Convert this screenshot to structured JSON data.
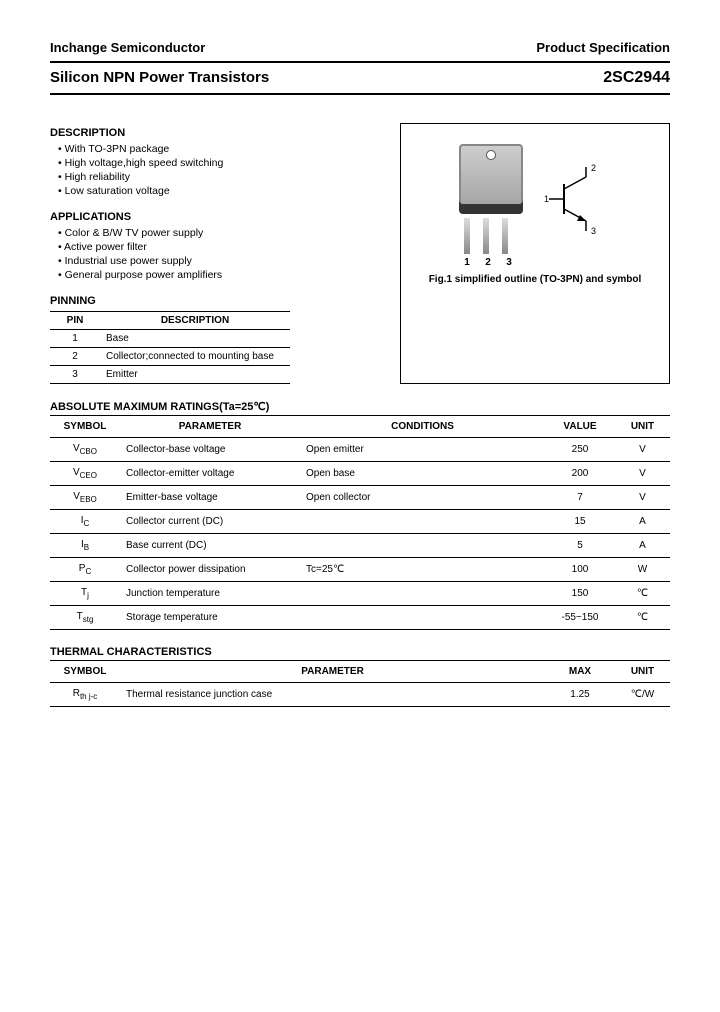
{
  "header": {
    "left": "Inchange Semiconductor",
    "right": "Product Specification"
  },
  "title": {
    "left": "Silicon NPN Power Transistors",
    "right": "2SC2944"
  },
  "description": {
    "heading": "DESCRIPTION",
    "items": [
      "With TO-3PN package",
      "High voltage,high speed switching",
      "High reliability",
      "Low saturation voltage"
    ]
  },
  "applications": {
    "heading": "APPLICATIONS",
    "items": [
      "Color & B/W TV power supply",
      "Active power filter",
      "Industrial use power supply",
      "General purpose power amplifiers"
    ]
  },
  "pinning": {
    "heading": "PINNING",
    "columns": [
      "PIN",
      "DESCRIPTION"
    ],
    "rows": [
      {
        "pin": "1",
        "desc": "Base"
      },
      {
        "pin": "2",
        "desc": "Collector;connected to mounting base"
      },
      {
        "pin": "3",
        "desc": "Emitter"
      }
    ]
  },
  "figure": {
    "caption": "Fig.1 simplified outline (TO-3PN) and symbol",
    "lead_labels": [
      "1",
      "2",
      "3"
    ],
    "symbol_labels": {
      "b": "1",
      "c": "2",
      "e": "3"
    }
  },
  "ratings": {
    "heading": "ABSOLUTE MAXIMUM RATINGS(Ta=25℃)",
    "columns": [
      "SYMBOL",
      "PARAMETER",
      "CONDITIONS",
      "VALUE",
      "UNIT"
    ],
    "rows": [
      {
        "sym": "V",
        "sub": "CBO",
        "param": "Collector-base voltage",
        "cond": "Open emitter",
        "val": "250",
        "unit": "V"
      },
      {
        "sym": "V",
        "sub": "CEO",
        "param": "Collector-emitter voltage",
        "cond": "Open base",
        "val": "200",
        "unit": "V"
      },
      {
        "sym": "V",
        "sub": "EBO",
        "param": "Emitter-base voltage",
        "cond": "Open collector",
        "val": "7",
        "unit": "V"
      },
      {
        "sym": "I",
        "sub": "C",
        "param": "Collector current (DC)",
        "cond": "",
        "val": "15",
        "unit": "A"
      },
      {
        "sym": "I",
        "sub": "B",
        "param": "Base current (DC)",
        "cond": "",
        "val": "5",
        "unit": "A"
      },
      {
        "sym": "P",
        "sub": "C",
        "param": "Collector power dissipation",
        "cond": "Tc=25℃",
        "val": "100",
        "unit": "W"
      },
      {
        "sym": "T",
        "sub": "j",
        "param": "Junction temperature",
        "cond": "",
        "val": "150",
        "unit": "℃"
      },
      {
        "sym": "T",
        "sub": "stg",
        "param": "Storage temperature",
        "cond": "",
        "val": "-55~150",
        "unit": "℃"
      }
    ]
  },
  "thermal": {
    "heading": "THERMAL CHARACTERISTICS",
    "columns": [
      "SYMBOL",
      "PARAMETER",
      "MAX",
      "UNIT"
    ],
    "rows": [
      {
        "sym": "R",
        "sub": "th j-c",
        "param": "Thermal resistance junction case",
        "max": "1.25",
        "unit": "℃/W"
      }
    ]
  }
}
